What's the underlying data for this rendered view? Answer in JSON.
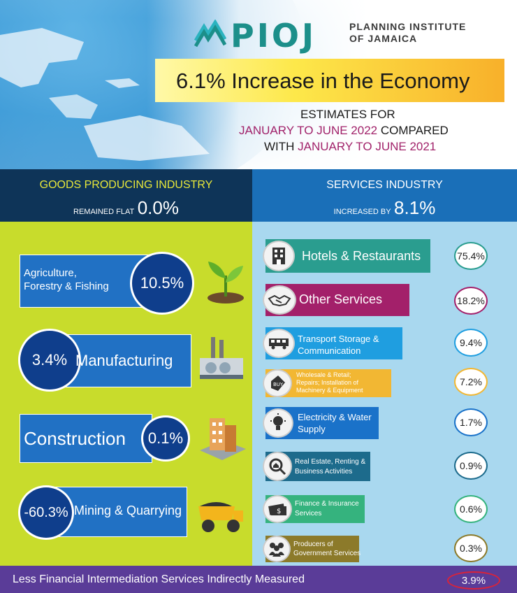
{
  "header": {
    "logo_text": "PIOJ",
    "logo_sub_line1": "PLANNING INSTITUTE",
    "logo_sub_line2": "OF JAMAICA",
    "title": "6.1% Increase in the Economy",
    "subtitle_line1": "ESTIMATES FOR",
    "subtitle_line2_highlight": "JANUARY TO JUNE 2022",
    "subtitle_line2_rest": " COMPARED",
    "subtitle_line3_prefix": "WITH ",
    "subtitle_line3_highlight": "JANUARY TO JUNE 2021"
  },
  "goods": {
    "title": "GOODS PRODUCING INDUSTRY",
    "stat_label": "REMAINED FLAT",
    "stat_value": "0.0%",
    "items": [
      {
        "label_line1": "Agriculture,",
        "label_line2": "Forestry & Fishing",
        "value": "10.5%",
        "icon": "plant-icon"
      },
      {
        "label": "Manufacturing",
        "value": "3.4%",
        "icon": "factory-icon"
      },
      {
        "label": "Construction",
        "value": "0.1%",
        "icon": "building-icon"
      },
      {
        "label": "Mining & Quarrying",
        "value": "-60.3%",
        "icon": "dump-truck-icon"
      }
    ]
  },
  "services": {
    "title": "SERVICES INDUSTRY",
    "stat_label": "INCREASED BY",
    "stat_value": "8.1%",
    "items": [
      {
        "label": "Hotels & Restaurants",
        "value": "75.4%",
        "color": "#2a9d8f",
        "icon": "hotel-icon"
      },
      {
        "label": "Other Services",
        "value": "18.2%",
        "color": "#a3206a",
        "icon": "handshake-icon"
      },
      {
        "label_line1": "Transport Storage &",
        "label_line2": "Communication",
        "value": "9.4%",
        "color": "#1f9ee0",
        "icon": "bus-icon"
      },
      {
        "label_line1": "Wholesale & Retail;",
        "label_line2": "Repairs; Installation of",
        "label_line3": "Machinery & Equipment",
        "value": "7.2%",
        "color": "#f2b733",
        "icon": "price-tag-icon"
      },
      {
        "label_line1": "Electricity & Water",
        "label_line2": "Supply",
        "value": "1.7%",
        "color": "#1a72c9",
        "icon": "lightbulb-icon"
      },
      {
        "label_line1": "Real Estate, Renting &",
        "label_line2": "Business Activities",
        "value": "0.9%",
        "color": "#1d6b8c",
        "icon": "house-search-icon"
      },
      {
        "label_line1": "Finance & Insurance",
        "label_line2": "Services",
        "value": "0.6%",
        "color": "#35b37e",
        "icon": "money-icon"
      },
      {
        "label_line1": "Producers of",
        "label_line2": "Government Services",
        "value": "0.3%",
        "color": "#8c7a2a",
        "icon": "people-icon"
      }
    ]
  },
  "footer": {
    "text": "Less Financial Intermediation Services Indirectly Measured",
    "value": "3.9%"
  }
}
